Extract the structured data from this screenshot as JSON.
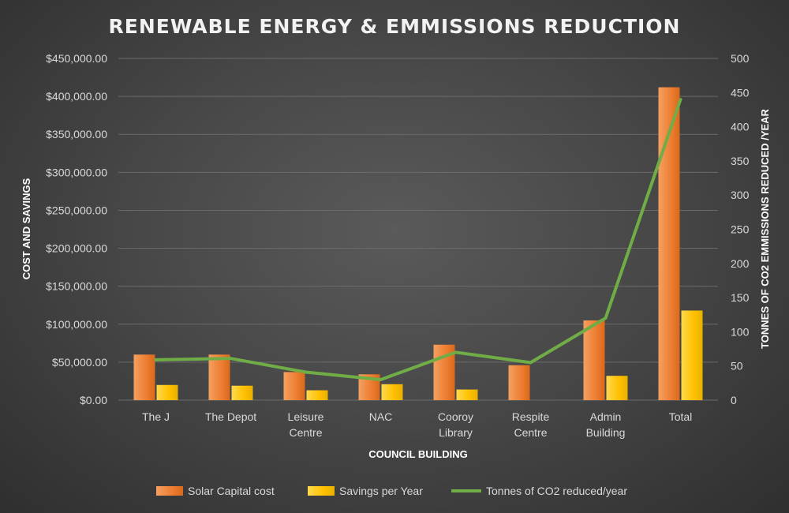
{
  "chart_data": {
    "type": "bar",
    "title": "RENEWABLE ENERGY & EMMISSIONS REDUCTION",
    "xlabel": "COUNCIL BUILDING",
    "ylabel": "COST AND SAVINGS",
    "y2label": "TONNES OF CO2 EMMISSIONS REDUCED /YEAR",
    "ylim": [
      0,
      450000
    ],
    "y2lim": [
      0,
      500
    ],
    "y_ticks": [
      "$0.00",
      "$50,000.00",
      "$100,000.00",
      "$150,000.00",
      "$200,000.00",
      "$250,000.00",
      "$300,000.00",
      "$350,000.00",
      "$400,000.00",
      "$450,000.00"
    ],
    "y2_ticks": [
      "0",
      "50",
      "100",
      "150",
      "200",
      "250",
      "300",
      "350",
      "400",
      "450",
      "500"
    ],
    "categories": [
      [
        "The J"
      ],
      [
        "The Depot"
      ],
      [
        "Leisure",
        "Centre"
      ],
      [
        "NAC"
      ],
      [
        "Cooroy",
        "Library"
      ],
      [
        "Respite",
        "Centre"
      ],
      [
        "Admin",
        "Building"
      ],
      [
        "Total"
      ]
    ],
    "grid": true,
    "legend_position": "bottom",
    "series": [
      {
        "name": "Solar Capital cost",
        "kind": "bar",
        "axis": "left",
        "color": "#ed7d31",
        "values": [
          60000,
          60000,
          37000,
          34000,
          73000,
          46000,
          105000,
          412000
        ]
      },
      {
        "name": "Savings per Year",
        "kind": "bar",
        "axis": "left",
        "color": "#ffc000",
        "values": [
          20000,
          19000,
          13000,
          21000,
          14000,
          0,
          32000,
          118000
        ]
      },
      {
        "name": "Tonnes of CO2 reduced/year",
        "kind": "line",
        "axis": "right",
        "color": "#70ad47",
        "values": [
          59,
          61,
          41,
          30,
          70,
          55,
          120,
          440
        ]
      }
    ]
  }
}
